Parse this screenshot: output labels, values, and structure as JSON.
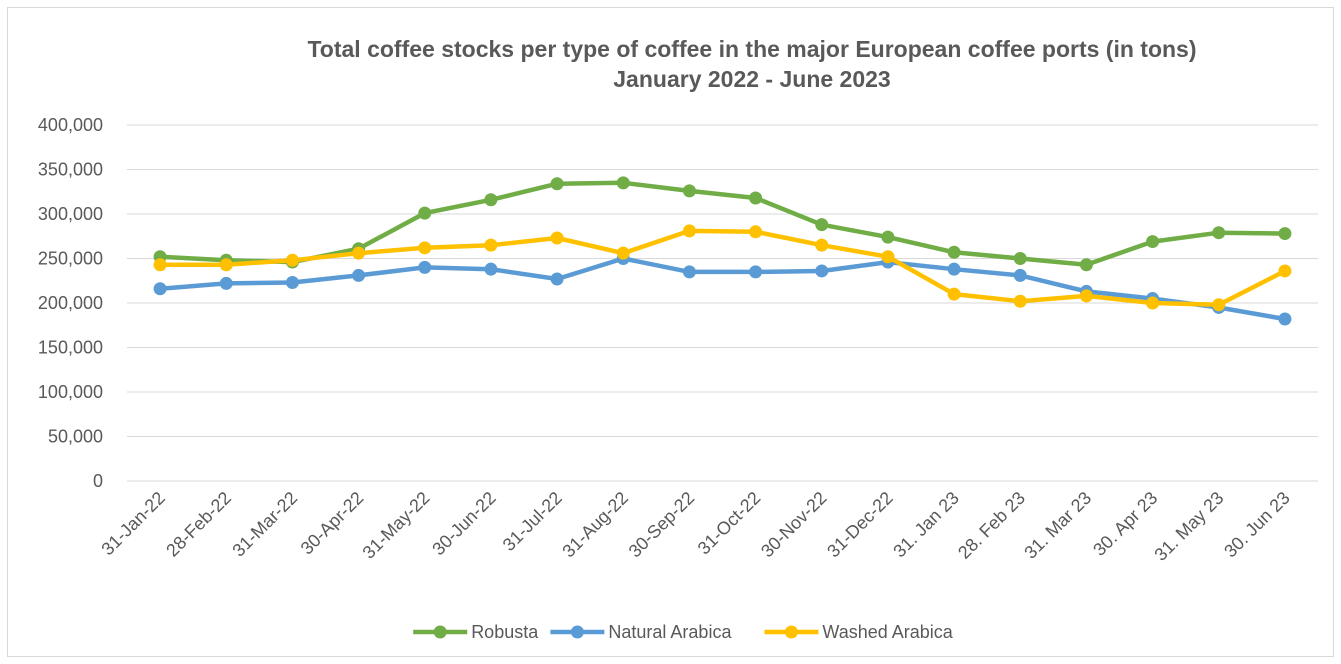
{
  "chart_data": {
    "type": "line",
    "title": "Total coffee stocks per type of coffee in the major European coffee ports (in tons)",
    "subtitle": "January 2022 - June 2023",
    "xlabel": "",
    "ylabel": "",
    "ylim": [
      0,
      400000
    ],
    "y_ticks": [
      "0",
      "50,000",
      "100,000",
      "150,000",
      "200,000",
      "250,000",
      "300,000",
      "350,000",
      "400,000"
    ],
    "y_tick_values": [
      0,
      50000,
      100000,
      150000,
      200000,
      250000,
      300000,
      350000,
      400000
    ],
    "grid": "horizontal",
    "legend_position": "bottom",
    "categories": [
      "31-Jan-22",
      "28-Feb-22",
      "31-Mar-22",
      "30-Apr-22",
      "31-May-22",
      "30-Jun-22",
      "31-Jul-22",
      "31-Aug-22",
      "30-Sep-22",
      "31-Oct-22",
      "30-Nov-22",
      "31-Dec-22",
      "31. Jan 23",
      "28. Feb 23",
      "31. Mar 23",
      "30. Apr 23",
      "31. May 23",
      "30. Jun 23"
    ],
    "series": [
      {
        "name": "Robusta",
        "color": "#70ad47",
        "values": [
          252000,
          248000,
          246000,
          261000,
          301000,
          316000,
          334000,
          335000,
          326000,
          318000,
          288000,
          274000,
          257000,
          250000,
          243000,
          269000,
          279000,
          278000
        ]
      },
      {
        "name": "Natural Arabica",
        "color": "#5b9bd5",
        "values": [
          216000,
          222000,
          223000,
          231000,
          240000,
          238000,
          227000,
          250000,
          235000,
          235000,
          236000,
          246000,
          238000,
          231000,
          213000,
          205000,
          195000,
          182000
        ]
      },
      {
        "name": "Washed Arabica",
        "color": "#ffc000",
        "values": [
          243000,
          243000,
          248000,
          256000,
          262000,
          265000,
          273000,
          256000,
          281000,
          280000,
          265000,
          252000,
          210000,
          202000,
          208000,
          200000,
          198000,
          236000
        ]
      }
    ]
  }
}
